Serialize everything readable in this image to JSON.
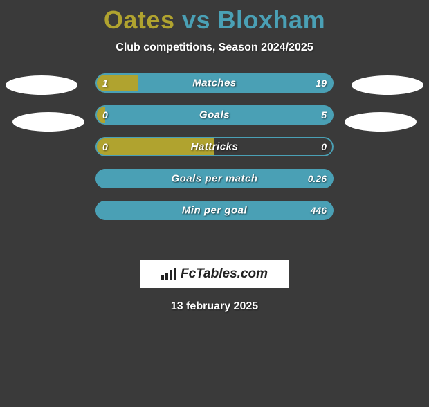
{
  "title": {
    "player1": "Oates",
    "vs": "vs",
    "player2": "Bloxham",
    "player1_color": "#b0a32f",
    "vs_color": "#4aa0b5",
    "player2_color": "#4aa0b5",
    "fontsize": 36
  },
  "subtitle": "Club competitions, Season 2024/2025",
  "colors": {
    "background": "#3a3a3a",
    "player1_bar": "#b0a32f",
    "player2_bar": "#4aa0b5",
    "outline_player2": "#4aa0b5",
    "text": "#ffffff",
    "ellipse": "#ffffff"
  },
  "stats": [
    {
      "label": "Matches",
      "left_value": "1",
      "right_value": "19",
      "left_pct": 18,
      "right_pct": 82
    },
    {
      "label": "Goals",
      "left_value": "0",
      "right_value": "5",
      "left_pct": 4,
      "right_pct": 96
    },
    {
      "label": "Hattricks",
      "left_value": "0",
      "right_value": "0",
      "left_pct": 50,
      "right_pct": 0
    },
    {
      "label": "Goals per match",
      "left_value": "",
      "right_value": "0.26",
      "left_pct": 0,
      "right_pct": 100
    },
    {
      "label": "Min per goal",
      "left_value": "",
      "right_value": "446",
      "left_pct": 0,
      "right_pct": 100
    }
  ],
  "branding": "FcTables.com",
  "date": "13 february 2025",
  "bar": {
    "height": 28,
    "radius": 14,
    "gap": 18,
    "label_fontsize": 15,
    "value_fontsize": 14
  }
}
